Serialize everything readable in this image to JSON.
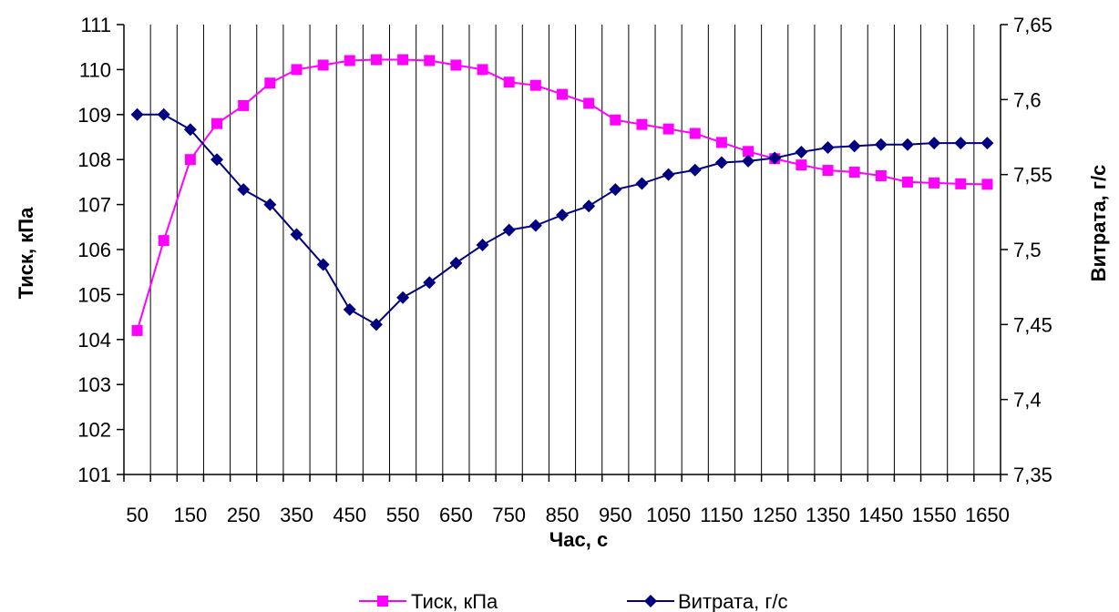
{
  "chart_data": {
    "type": "line",
    "x": [
      50,
      100,
      150,
      200,
      250,
      300,
      350,
      400,
      450,
      500,
      550,
      600,
      650,
      700,
      750,
      800,
      850,
      900,
      950,
      1000,
      1050,
      1100,
      1150,
      1200,
      1250,
      1300,
      1350,
      1400,
      1450,
      1500,
      1550,
      1600,
      1650
    ],
    "x_tick_labels": [
      "50",
      "100",
      "150",
      "200",
      "250",
      "300",
      "350",
      "400",
      "450",
      "500",
      "550",
      "600",
      "650",
      "700",
      "750",
      "800",
      "850",
      "900",
      "950",
      "1000",
      "1050",
      "1100",
      "1150",
      "1200",
      "1250",
      "1300",
      "1350",
      "1400",
      "1450",
      "1500",
      "1550",
      "1600",
      "1650"
    ],
    "xlabel": "Час, с",
    "ylabel_left": "Тиск, кПа",
    "ylabel_right": "Витрата, г/с",
    "ylim_left": [
      101,
      111
    ],
    "ylim_right": [
      7.35,
      7.65
    ],
    "y_ticks_left": [
      "101",
      "102",
      "103",
      "104",
      "105",
      "106",
      "107",
      "108",
      "109",
      "110",
      "111"
    ],
    "y_ticks_right": [
      "7,35",
      "7,4",
      "7,45",
      "7,5",
      "7,55",
      "7,6",
      "7,65"
    ],
    "series": [
      {
        "name": "Тиск, кПа",
        "axis": "left",
        "color": "#ff00ff",
        "marker": "square",
        "values": [
          104.2,
          106.2,
          108.0,
          108.8,
          109.2,
          109.7,
          110.0,
          110.1,
          110.2,
          110.22,
          110.22,
          110.2,
          110.1,
          110.0,
          109.72,
          109.65,
          109.45,
          109.25,
          108.88,
          108.78,
          108.68,
          108.58,
          108.38,
          108.18,
          108.02,
          107.88,
          107.76,
          107.72,
          107.64,
          107.5,
          107.48,
          107.46,
          107.45
        ]
      },
      {
        "name": "Витрата, г/с",
        "axis": "right",
        "color": "#000080",
        "marker": "diamond",
        "values": [
          7.59,
          7.59,
          7.58,
          7.56,
          7.54,
          7.53,
          7.51,
          7.49,
          7.46,
          7.45,
          7.468,
          7.478,
          7.491,
          7.503,
          7.513,
          7.516,
          7.523,
          7.529,
          7.54,
          7.544,
          7.55,
          7.553,
          7.558,
          7.559,
          7.561,
          7.565,
          7.568,
          7.569,
          7.57,
          7.57,
          7.571,
          7.571,
          7.571
        ]
      }
    ],
    "grid": "vertical",
    "legend_position": "bottom"
  }
}
